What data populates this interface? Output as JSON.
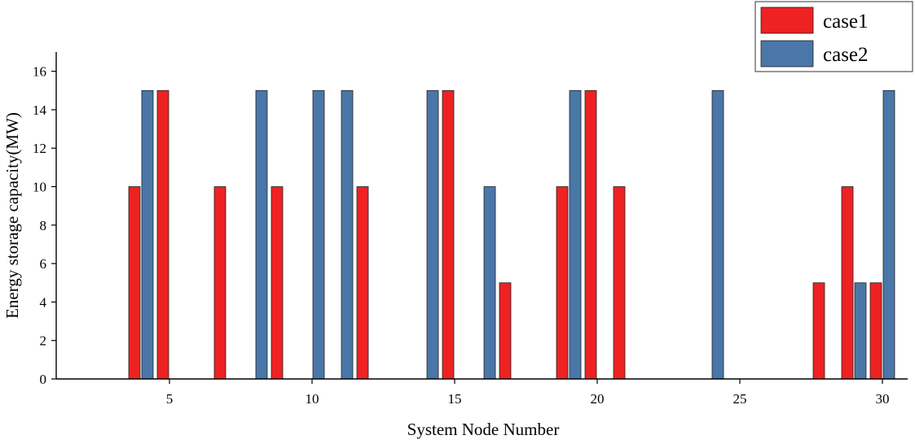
{
  "chart_data": {
    "type": "bar",
    "title": "",
    "xlabel": "System Node Number",
    "ylabel": "Energy storage capacity(MW)",
    "xlim": [
      1,
      31
    ],
    "ylim": [
      0,
      17
    ],
    "x_ticks": [
      5,
      10,
      15,
      20,
      25,
      30
    ],
    "y_ticks": [
      0,
      2,
      4,
      6,
      8,
      10,
      12,
      14,
      16
    ],
    "grid": false,
    "legend_position": "top-right",
    "series": [
      {
        "name": "case1",
        "color": "#ee2222",
        "points": [
          {
            "x": 4,
            "y": 10
          },
          {
            "x": 5,
            "y": 15
          },
          {
            "x": 7,
            "y": 10
          },
          {
            "x": 9,
            "y": 10
          },
          {
            "x": 12,
            "y": 10
          },
          {
            "x": 15,
            "y": 15
          },
          {
            "x": 17,
            "y": 5
          },
          {
            "x": 19,
            "y": 10
          },
          {
            "x": 20,
            "y": 15
          },
          {
            "x": 21,
            "y": 10
          },
          {
            "x": 28,
            "y": 5
          },
          {
            "x": 29,
            "y": 10
          },
          {
            "x": 30,
            "y": 5
          }
        ]
      },
      {
        "name": "case2",
        "color": "#4a76a8",
        "points": [
          {
            "x": 4,
            "y": 15
          },
          {
            "x": 8,
            "y": 15
          },
          {
            "x": 10,
            "y": 15
          },
          {
            "x": 11,
            "y": 15
          },
          {
            "x": 14,
            "y": 15
          },
          {
            "x": 16,
            "y": 10
          },
          {
            "x": 19,
            "y": 15
          },
          {
            "x": 24,
            "y": 15
          },
          {
            "x": 29,
            "y": 5
          },
          {
            "x": 30,
            "y": 15
          }
        ]
      }
    ]
  }
}
